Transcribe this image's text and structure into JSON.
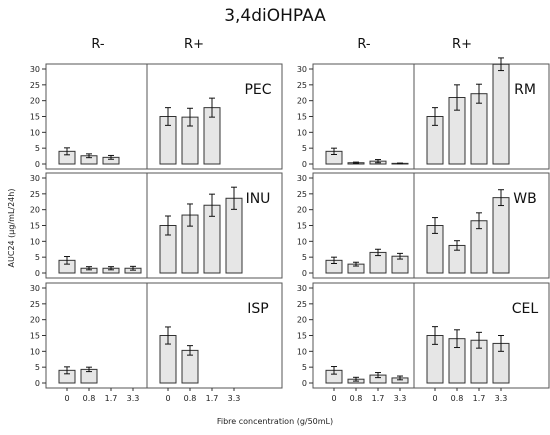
{
  "title": "3,4diOHPAA",
  "ylabel": "AUC24 (µg/mL/24h)",
  "xlabel": "Fibre concentration (g/50mL)",
  "column_headers": [
    "R-",
    "R+",
    "R-",
    "R+"
  ],
  "chart_data": {
    "type": "bar",
    "title": "3,4diOHPAA",
    "xlabel": "Fibre concentration (g/50mL)",
    "ylabel": "AUC24 (µg/mL/24h)",
    "ylim": [
      0,
      30
    ],
    "yticks": [
      0,
      5,
      10,
      15,
      20,
      25,
      30
    ],
    "categories": [
      "0",
      "0.8",
      "1.7",
      "3.3"
    ],
    "grid": false,
    "panels": [
      {
        "label": "PEC",
        "R-": {
          "values": [
            4.0,
            2.6,
            2.1,
            null
          ],
          "errors": [
            1.1,
            0.6,
            0.6,
            null
          ]
        },
        "R+": {
          "values": [
            15.0,
            14.8,
            17.8,
            null
          ],
          "errors": [
            2.8,
            2.8,
            3.0,
            null
          ]
        }
      },
      {
        "label": "INU",
        "R-": {
          "values": [
            4.0,
            1.5,
            1.5,
            1.5
          ],
          "errors": [
            1.2,
            0.5,
            0.5,
            0.6
          ]
        },
        "R+": {
          "values": [
            15.0,
            18.3,
            21.4,
            23.6
          ],
          "errors": [
            3.0,
            3.5,
            3.5,
            3.5
          ]
        }
      },
      {
        "label": "ISP",
        "R-": {
          "values": [
            4.0,
            4.3,
            null,
            null
          ],
          "errors": [
            1.1,
            0.7,
            null,
            null
          ]
        },
        "R+": {
          "values": [
            15.0,
            10.3,
            null,
            null
          ],
          "errors": [
            2.7,
            1.5,
            null,
            null
          ]
        }
      },
      {
        "label": "RM",
        "R-": {
          "values": [
            4.0,
            0.4,
            0.9,
            0.2
          ],
          "errors": [
            1.0,
            0.2,
            0.5,
            0.1
          ]
        },
        "R+": {
          "values": [
            15.0,
            21.0,
            22.2,
            31.5
          ],
          "errors": [
            2.8,
            4.0,
            3.0,
            2.0
          ]
        }
      },
      {
        "label": "WB",
        "R-": {
          "values": [
            4.0,
            2.8,
            6.5,
            5.3
          ],
          "errors": [
            1.0,
            0.6,
            1.0,
            0.9
          ]
        },
        "R+": {
          "values": [
            15.0,
            8.7,
            16.5,
            23.8
          ],
          "errors": [
            2.5,
            1.5,
            2.5,
            2.5
          ]
        }
      },
      {
        "label": "CEL",
        "R-": {
          "values": [
            4.0,
            1.2,
            2.5,
            1.6
          ],
          "errors": [
            1.2,
            0.6,
            0.8,
            0.6
          ]
        },
        "R+": {
          "values": [
            15.0,
            14.0,
            13.5,
            12.5
          ],
          "errors": [
            2.8,
            2.8,
            2.5,
            2.5
          ]
        }
      }
    ]
  }
}
